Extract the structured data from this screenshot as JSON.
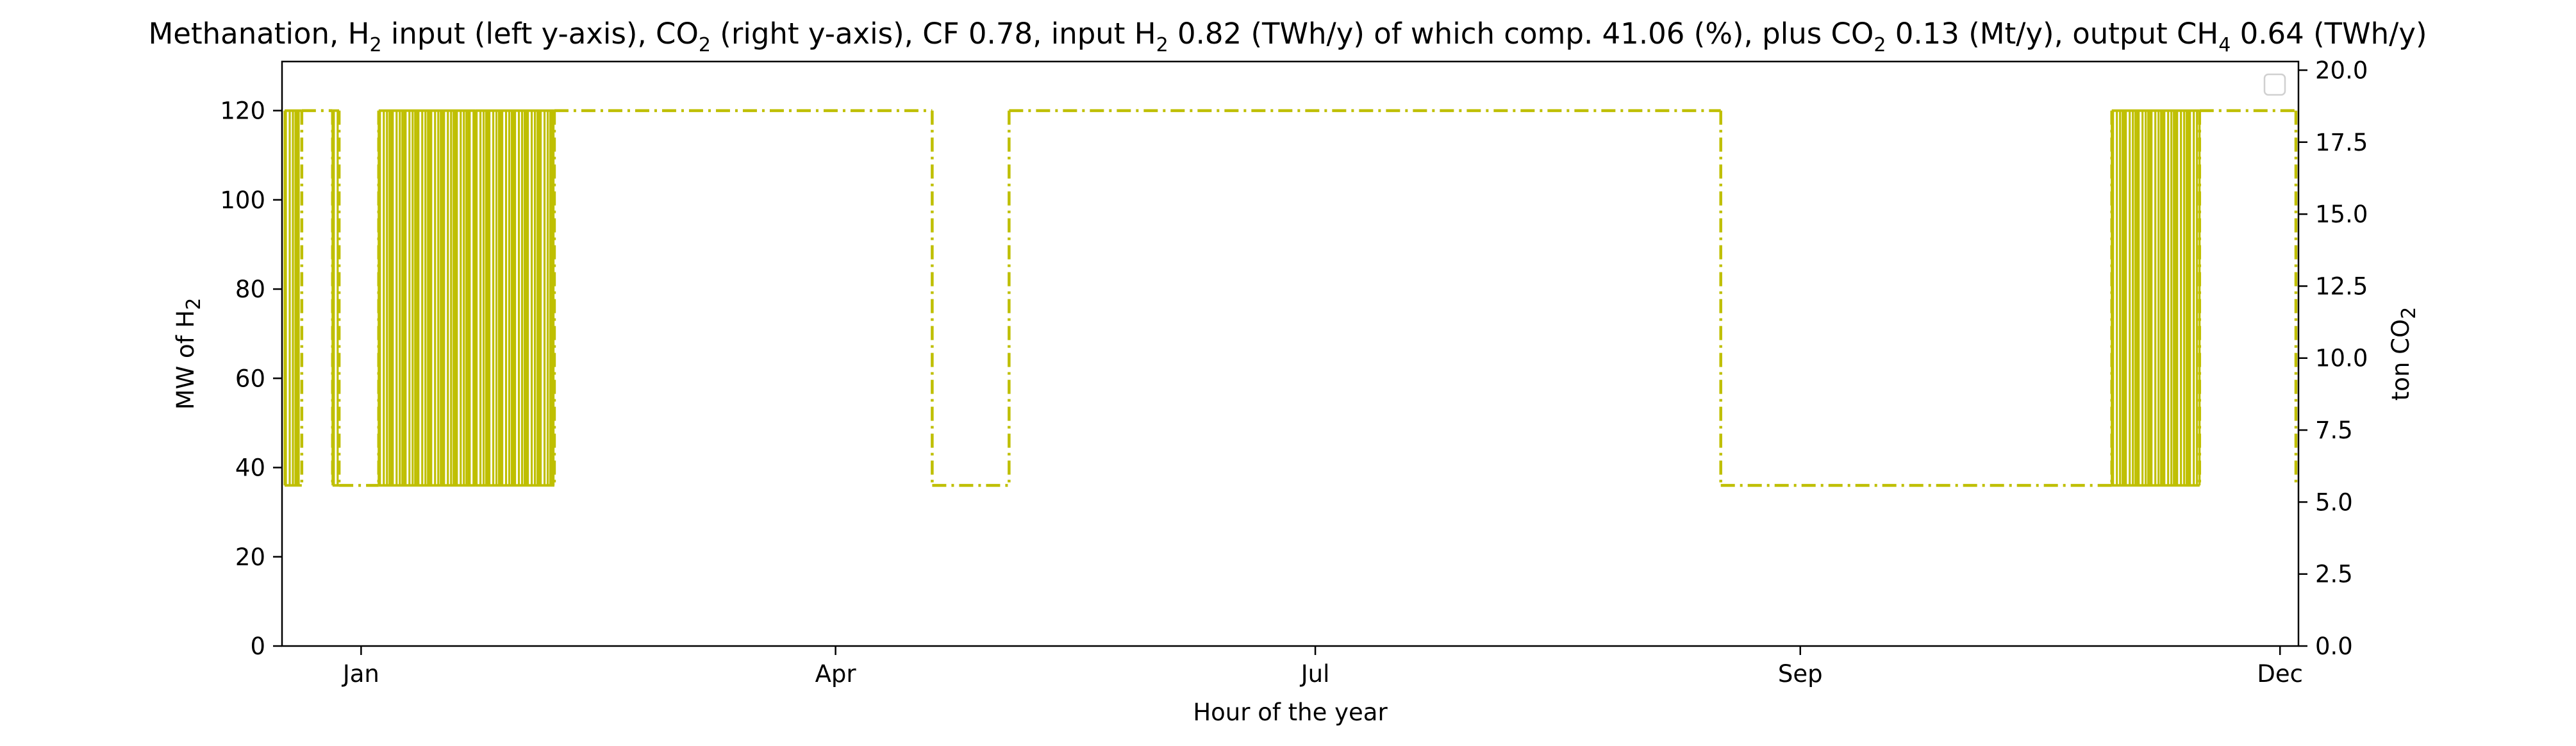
{
  "chart_data": {
    "type": "line",
    "title": {
      "p1": "Methanation, H",
      "s1": "2",
      "p2": " input (left y-axis), CO",
      "s2": "2",
      "p3": " (right y-axis), CF 0.78, input H",
      "s3": "2",
      "p4": " 0.82 (TWh/y) of which comp. 41.06 (%), plus CO",
      "s4": "2",
      "p5": " 0.13 (Mt/y), output CH",
      "s5": "4",
      "p6": " 0.64 (TWh/y)"
    },
    "xlabel": "Hour of the year",
    "ylabel_left": {
      "main": "MW of H",
      "sub": "2"
    },
    "ylabel_right": {
      "main": "ton CO",
      "sub": "2"
    },
    "x_range_hours": [
      -360,
      8820
    ],
    "ylim_left": [
      0,
      131
    ],
    "ylim_right": [
      0,
      20.3
    ],
    "left_ticks": [
      "0",
      "20",
      "40",
      "60",
      "80",
      "100",
      "120"
    ],
    "right_ticks": [
      "0.0",
      "2.5",
      "5.0",
      "7.5",
      "10.0",
      "12.5",
      "15.0",
      "17.5",
      "20.0"
    ],
    "x_ticks": [
      {
        "hour": 0,
        "label": "Jan"
      },
      {
        "hour": 2160,
        "label": "Apr"
      },
      {
        "hour": 4344,
        "label": "Jul"
      },
      {
        "hour": 6552,
        "label": "Sep"
      },
      {
        "hour": 8736,
        "label": "Dec"
      }
    ],
    "legend": {
      "placement": "top-right",
      "entries": []
    },
    "grid": false,
    "series_color": "#bfbf00",
    "series_style": "dashdot",
    "series": [
      {
        "levels": {
          "high": 120,
          "low": 36
        },
        "segments": [
          {
            "start": -360,
            "end": -270,
            "state": "oscillating"
          },
          {
            "start": -270,
            "end": -130,
            "state": "high"
          },
          {
            "start": -130,
            "end": -100,
            "state": "oscillating"
          },
          {
            "start": -100,
            "end": 80,
            "state": "low"
          },
          {
            "start": 80,
            "end": 520,
            "state": "oscillating"
          },
          {
            "start": 520,
            "end": 880,
            "state": "oscillating"
          },
          {
            "start": 880,
            "end": 2600,
            "state": "high"
          },
          {
            "start": 2600,
            "end": 2950,
            "state": "low"
          },
          {
            "start": 2950,
            "end": 6190,
            "state": "high"
          },
          {
            "start": 6190,
            "end": 7970,
            "state": "low"
          },
          {
            "start": 7970,
            "end": 8370,
            "state": "oscillating"
          },
          {
            "start": 8370,
            "end": 8880,
            "state": "high"
          },
          {
            "start": 8880,
            "end": 9200,
            "state": "oscillating"
          }
        ]
      }
    ]
  }
}
